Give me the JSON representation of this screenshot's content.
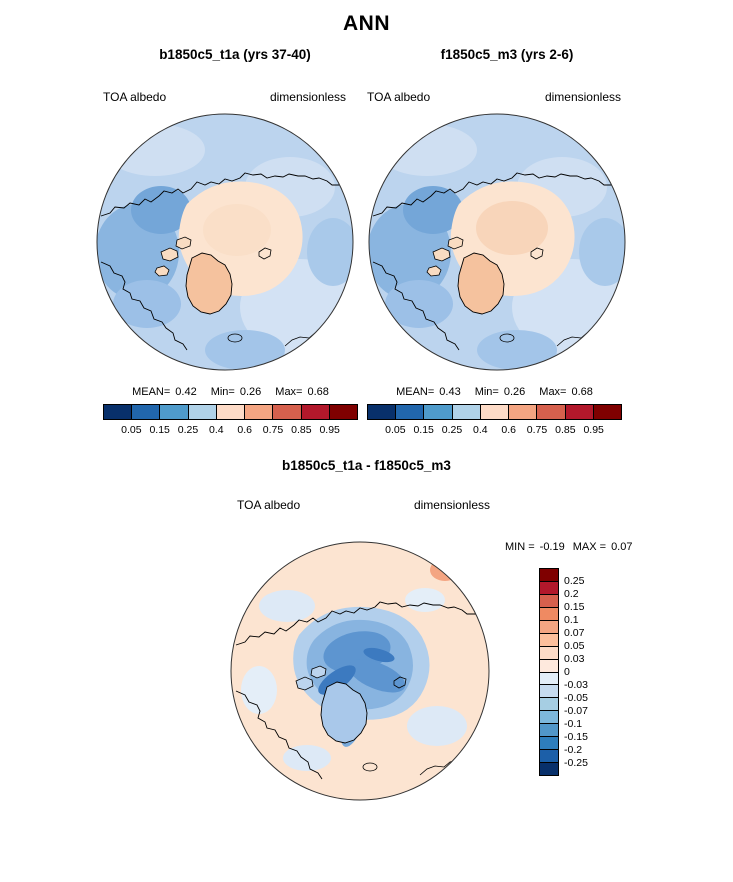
{
  "title": "ANN",
  "panels": [
    {
      "title": "b1850c5_t1a (yrs 37-40)",
      "field_label": "TOA albedo",
      "units_label": "dimensionless",
      "stats": {
        "mean_label": "MEAN=",
        "mean": "0.42",
        "min_label": "Min=",
        "min": "0.26",
        "max_label": "Max=",
        "max": "0.68"
      }
    },
    {
      "title": "f1850c5_m3 (yrs 2-6)",
      "field_label": "TOA albedo",
      "units_label": "dimensionless",
      "stats": {
        "mean_label": "MEAN=",
        "mean": "0.43",
        "min_label": "Min=",
        "min": "0.26",
        "max_label": "Max=",
        "max": "0.68"
      }
    }
  ],
  "diff_panel": {
    "title": "b1850c5_t1a - f1850c5_m3",
    "field_label": "TOA albedo",
    "units_label": "dimensionless",
    "min_label": "MIN =",
    "min": "-0.19",
    "max_label": "MAX =",
    "max": "0.07"
  },
  "abs_colorbar": {
    "ticks": [
      "0.05",
      "0.15",
      "0.25",
      "0.4",
      "0.6",
      "0.75",
      "0.85",
      "0.95"
    ],
    "colors": [
      "#08306b",
      "#2166ac",
      "#4f9bcb",
      "#b0d2e8",
      "#fddbc7",
      "#f4a582",
      "#d6604d",
      "#b2182b",
      "#7f0000"
    ]
  },
  "diff_colorbar": {
    "ticks": [
      "0.25",
      "0.2",
      "0.15",
      "0.1",
      "0.07",
      "0.05",
      "0.03",
      "0",
      "-0.03",
      "-0.05",
      "-0.07",
      "-0.1",
      "-0.15",
      "-0.2",
      "-0.25"
    ],
    "colors": [
      "#7f0000",
      "#b2182b",
      "#d6604d",
      "#ef8a62",
      "#f4a582",
      "#fdbf9c",
      "#fddbc7",
      "#fee9dd",
      "#e3eef8",
      "#c6dbef",
      "#a6cee3",
      "#7db8dc",
      "#5197c9",
      "#2e7ebc",
      "#1c5fa8",
      "#08306b"
    ]
  },
  "chart_data": [
    {
      "type": "heatmap",
      "projection": "north-polar-stereographic",
      "season": "ANN",
      "title": "b1850c5_t1a (yrs 37-40)",
      "variable": "TOA albedo",
      "units": "dimensionless",
      "stats": {
        "mean": 0.42,
        "min": 0.26,
        "max": 0.68
      },
      "contour_levels": [
        0.05,
        0.15,
        0.25,
        0.4,
        0.6,
        0.75,
        0.85,
        0.95
      ],
      "palette": [
        "#08306b",
        "#2166ac",
        "#4f9bcb",
        "#b0d2e8",
        "#fddbc7",
        "#f4a582",
        "#d6604d",
        "#b2182b",
        "#7f0000"
      ],
      "legend_position": "bottom"
    },
    {
      "type": "heatmap",
      "projection": "north-polar-stereographic",
      "season": "ANN",
      "title": "f1850c5_m3 (yrs 2-6)",
      "variable": "TOA albedo",
      "units": "dimensionless",
      "stats": {
        "mean": 0.43,
        "min": 0.26,
        "max": 0.68
      },
      "contour_levels": [
        0.05,
        0.15,
        0.25,
        0.4,
        0.6,
        0.75,
        0.85,
        0.95
      ],
      "palette": [
        "#08306b",
        "#2166ac",
        "#4f9bcb",
        "#b0d2e8",
        "#fddbc7",
        "#f4a582",
        "#d6604d",
        "#b2182b",
        "#7f0000"
      ],
      "legend_position": "bottom"
    },
    {
      "type": "heatmap",
      "projection": "north-polar-stereographic",
      "season": "ANN",
      "title": "b1850c5_t1a - f1850c5_m3",
      "variable": "TOA albedo",
      "units": "dimensionless",
      "stats": {
        "min": -0.19,
        "max": 0.07
      },
      "contour_levels": [
        -0.25,
        -0.2,
        -0.15,
        -0.1,
        -0.07,
        -0.05,
        -0.03,
        0,
        0.03,
        0.05,
        0.07,
        0.1,
        0.15,
        0.2,
        0.25
      ],
      "palette": [
        "#08306b",
        "#1c5fa8",
        "#2e7ebc",
        "#5197c9",
        "#7db8dc",
        "#a6cee3",
        "#c6dbef",
        "#e3eef8",
        "#fee9dd",
        "#fddbc7",
        "#fdbf9c",
        "#f4a582",
        "#ef8a62",
        "#d6604d",
        "#b2182b",
        "#7f0000"
      ],
      "legend_position": "right"
    }
  ]
}
